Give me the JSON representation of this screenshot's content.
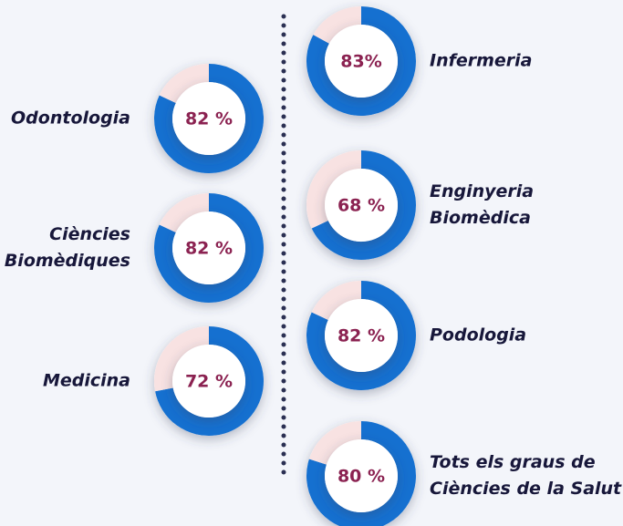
{
  "chart_data": [
    {
      "type": "donut",
      "title": [
        "Odontologia"
      ],
      "values": [
        82,
        18
      ],
      "value_labels": [
        "82 %",
        null
      ],
      "colors": [
        "#1570d0",
        "#f8e2e2"
      ]
    },
    {
      "type": "donut",
      "title": [
        "Ciències",
        "Biomèdiques"
      ],
      "values": [
        82,
        18
      ],
      "value_labels": [
        "82 %",
        null
      ],
      "colors": [
        "#1570d0",
        "#f8e2e2"
      ]
    },
    {
      "type": "donut",
      "title": [
        "Medicina"
      ],
      "values": [
        72,
        28
      ],
      "value_labels": [
        "72 %",
        null
      ],
      "colors": [
        "#1570d0",
        "#f8e2e2"
      ]
    },
    {
      "type": "donut",
      "title": [
        "Infermeria"
      ],
      "values": [
        83,
        17
      ],
      "value_labels": [
        "83%",
        null
      ],
      "colors": [
        "#1570d0",
        "#f8e2e2"
      ]
    },
    {
      "type": "donut",
      "title": [
        "Enginyeria",
        "Biomèdica"
      ],
      "values": [
        68,
        32
      ],
      "value_labels": [
        "68 %",
        null
      ],
      "colors": [
        "#1570d0",
        "#f8e2e2"
      ]
    },
    {
      "type": "donut",
      "title": [
        "Podologia"
      ],
      "values": [
        82,
        18
      ],
      "value_labels": [
        "82 %",
        null
      ],
      "colors": [
        "#1570d0",
        "#f8e2e2"
      ]
    },
    {
      "type": "donut",
      "title": [
        "Tots els graus de",
        "Ciències de la Salut"
      ],
      "values": [
        80,
        20
      ],
      "value_labels": [
        "80 %",
        null
      ],
      "colors": [
        "#1570d0",
        "#f8e2e2"
      ]
    }
  ]
}
